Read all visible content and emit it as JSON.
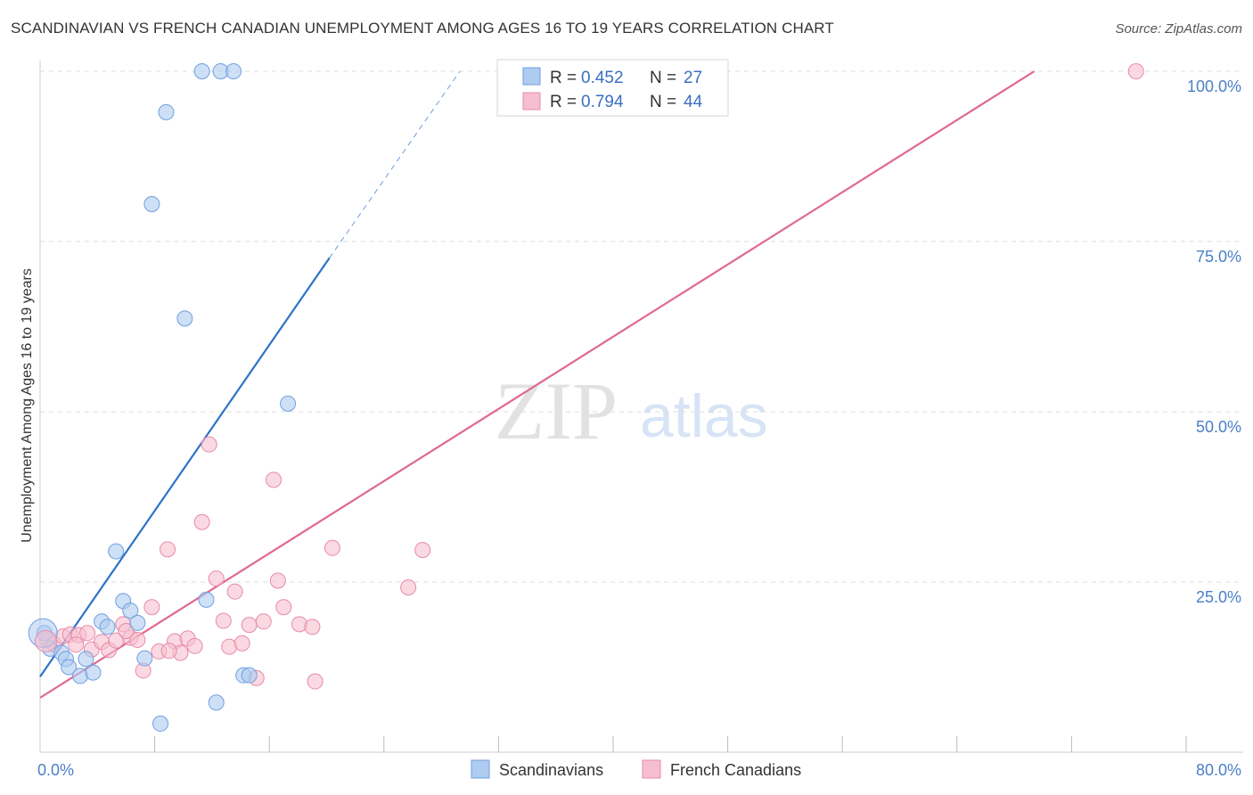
{
  "title": "SCANDINAVIAN VS FRENCH CANADIAN UNEMPLOYMENT AMONG AGES 16 TO 19 YEARS CORRELATION CHART",
  "source": "Source: ZipAtlas.com",
  "watermark": {
    "zip": "ZIP",
    "atlas": "atlas"
  },
  "colors": {
    "blue_fill": "#aecbf0",
    "blue_stroke": "#6f9fe0",
    "blue_line": "#2e72c8",
    "pink_fill": "#f6bfd0",
    "pink_stroke": "#e88aa8",
    "pink_line": "#e06890",
    "tick_text": "#4a7fc8",
    "grid": "#dddddd"
  },
  "legend": {
    "row1": {
      "r_label": "R = ",
      "r_value": "0.452",
      "n_label": "N = ",
      "n_value": "27"
    },
    "row2": {
      "r_label": "R = ",
      "r_value": "0.794",
      "n_label": "N = ",
      "n_value": "44"
    }
  },
  "chart_data": {
    "type": "scatter",
    "title": "SCANDINAVIAN VS FRENCH CANADIAN UNEMPLOYMENT AMONG AGES 16 TO 19 YEARS CORRELATION CHART",
    "xlabel": "",
    "ylabel": "Unemployment Among Ages 16 to 19 years",
    "xlim": [
      0,
      80
    ],
    "ylim": [
      0,
      100
    ],
    "x_tick_labels": {
      "left": "0.0%",
      "right": "80.0%"
    },
    "y_tick_labels": [
      "25.0%",
      "50.0%",
      "75.0%",
      "100.0%"
    ],
    "y_tick_values": [
      25,
      50,
      75,
      100
    ],
    "x_minor_ticks": [
      8,
      16,
      24,
      32,
      40,
      48,
      56,
      64,
      72,
      80
    ],
    "grid": true,
    "legend_position": "top-center",
    "series": [
      {
        "name": "Scandinavians",
        "r": 0.452,
        "n": 27,
        "points": [
          [
            0.3,
            17.5
          ],
          [
            0.7,
            15.2
          ],
          [
            1.5,
            14.6
          ],
          [
            1.8,
            13.7
          ],
          [
            2.0,
            12.5
          ],
          [
            2.8,
            11.2
          ],
          [
            3.2,
            13.7
          ],
          [
            3.7,
            11.7
          ],
          [
            4.3,
            19.2
          ],
          [
            4.7,
            18.4
          ],
          [
            5.3,
            29.5
          ],
          [
            5.8,
            22.2
          ],
          [
            6.3,
            20.8
          ],
          [
            6.8,
            19.0
          ],
          [
            7.3,
            13.8
          ],
          [
            8.4,
            4.2
          ],
          [
            8.8,
            94.0
          ],
          [
            7.8,
            80.5
          ],
          [
            10.1,
            63.7
          ],
          [
            11.3,
            100.0
          ],
          [
            12.6,
            100.0
          ],
          [
            13.5,
            100.0
          ],
          [
            11.6,
            22.4
          ],
          [
            12.3,
            7.3
          ],
          [
            14.2,
            11.3
          ],
          [
            14.6,
            11.3
          ],
          [
            17.3,
            51.2
          ]
        ],
        "trend": {
          "x0": 0,
          "y0": 11.1,
          "x1": 20.2,
          "y1": 72.6,
          "dash_to_x": 29.3,
          "dash_to_y": 100.0
        }
      },
      {
        "name": "French Canadians",
        "r": 0.794,
        "n": 44,
        "points": [
          [
            0.5,
            16.5
          ],
          [
            1.0,
            15.8
          ],
          [
            1.6,
            17.0
          ],
          [
            2.1,
            17.3
          ],
          [
            2.7,
            17.2
          ],
          [
            3.3,
            17.5
          ],
          [
            3.6,
            15.1
          ],
          [
            4.3,
            16.2
          ],
          [
            4.8,
            15.0
          ],
          [
            5.3,
            16.4
          ],
          [
            5.8,
            18.8
          ],
          [
            6.3,
            16.8
          ],
          [
            6.8,
            16.5
          ],
          [
            7.2,
            12.0
          ],
          [
            7.8,
            21.3
          ],
          [
            8.3,
            14.8
          ],
          [
            8.9,
            29.8
          ],
          [
            9.4,
            16.3
          ],
          [
            9.8,
            14.6
          ],
          [
            10.3,
            16.7
          ],
          [
            10.8,
            15.6
          ],
          [
            11.3,
            33.8
          ],
          [
            11.8,
            45.2
          ],
          [
            12.3,
            25.5
          ],
          [
            12.8,
            19.3
          ],
          [
            13.2,
            15.5
          ],
          [
            13.6,
            23.6
          ],
          [
            14.1,
            16.0
          ],
          [
            14.6,
            18.7
          ],
          [
            15.1,
            10.9
          ],
          [
            15.6,
            19.2
          ],
          [
            16.3,
            40.0
          ],
          [
            16.6,
            25.2
          ],
          [
            17.0,
            21.3
          ],
          [
            18.1,
            18.8
          ],
          [
            19.0,
            18.4
          ],
          [
            19.2,
            10.4
          ],
          [
            20.4,
            30.0
          ],
          [
            25.7,
            24.2
          ],
          [
            26.7,
            29.7
          ],
          [
            76.5,
            100.0
          ],
          [
            6.0,
            17.8
          ],
          [
            9.0,
            14.9
          ],
          [
            2.5,
            15.8
          ]
        ],
        "trend": {
          "x0": 0,
          "y0": 8.0,
          "x1": 69.4,
          "y1": 100.0
        }
      }
    ]
  },
  "bottom_legend": {
    "item1": "Scandinavians",
    "item2": "French Canadians"
  }
}
